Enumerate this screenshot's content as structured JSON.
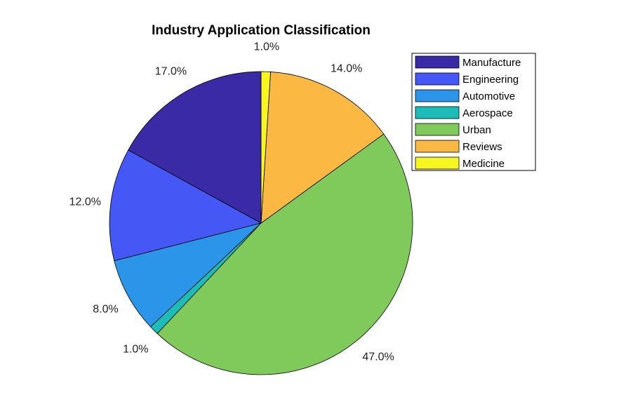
{
  "chart_data": {
    "type": "pie",
    "title": "Industry Application Classification",
    "legend_position": "top-right",
    "slices": [
      {
        "label": "Manufacture",
        "value": 17.0,
        "pct_label": "17.0%",
        "color": "#3a2aa6"
      },
      {
        "label": "Engineering",
        "value": 12.0,
        "pct_label": "12.0%",
        "color": "#4558f6"
      },
      {
        "label": "Automotive",
        "value": 8.0,
        "pct_label": "8.0%",
        "color": "#2b95ea"
      },
      {
        "label": "Aerospace",
        "value": 1.0,
        "pct_label": "1.0%",
        "color": "#1cbcb8"
      },
      {
        "label": "Urban",
        "value": 47.0,
        "pct_label": "47.0%",
        "color": "#80ca5c"
      },
      {
        "label": "Reviews",
        "value": 14.0,
        "pct_label": "14.0%",
        "color": "#fbb943"
      },
      {
        "label": "Medicine",
        "value": 1.0,
        "pct_label": "1.0%",
        "color": "#f7f61e"
      }
    ]
  }
}
